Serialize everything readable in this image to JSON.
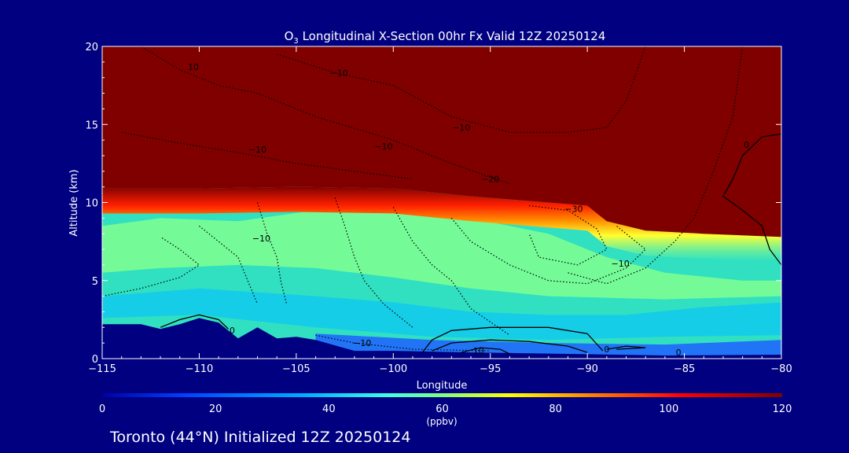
{
  "chart_data": {
    "type": "heatmap",
    "title_prefix": "O",
    "title_sub": "3",
    "title_rest": " Longitudinal X-Section 00hr  Fx Valid 12Z 20250124",
    "xlabel": "Longitude",
    "ylabel": "Altitude (km)",
    "xlim": [
      -115,
      -80
    ],
    "ylim": [
      0,
      20
    ],
    "x_ticks": [
      -115,
      -110,
      -105,
      -100,
      -95,
      -90,
      -85,
      -80
    ],
    "x_tick_labels": [
      "−115",
      "−110",
      "−105",
      "−100",
      "−95",
      "−90",
      "−85",
      "−80"
    ],
    "y_ticks": [
      0,
      5,
      10,
      15,
      20
    ],
    "y_tick_labels": [
      "0",
      "5",
      "10",
      "15",
      "20"
    ],
    "colorbar": {
      "min": 0,
      "max": 120,
      "ticks": [
        0,
        20,
        40,
        60,
        80,
        100,
        120
      ],
      "tick_labels": [
        "0",
        "20",
        "40",
        "60",
        "80",
        "100",
        "120"
      ],
      "unit": "(ppbv)"
    },
    "surface_km": [
      [
        -115,
        2.2
      ],
      [
        -113,
        2.2
      ],
      [
        -112,
        1.9
      ],
      [
        -111,
        2.2
      ],
      [
        -110,
        2.6
      ],
      [
        -109,
        2.3
      ],
      [
        -108,
        1.3
      ],
      [
        -107,
        2.0
      ],
      [
        -106,
        1.3
      ],
      [
        -105,
        1.4
      ],
      [
        -104,
        1.2
      ],
      [
        -102,
        0.5
      ],
      [
        -100,
        0.5
      ],
      [
        -96,
        0.4
      ],
      [
        -91,
        0.3
      ],
      [
        -86,
        0.2
      ],
      [
        -80,
        0.25
      ]
    ],
    "tropopause_km": [
      [
        -115,
        10.9
      ],
      [
        -110,
        10.9
      ],
      [
        -105,
        11.0
      ],
      [
        -100,
        10.9
      ],
      [
        -96,
        10.4
      ],
      [
        -92,
        10.0
      ],
      [
        -90,
        9.8
      ],
      [
        -89,
        8.8
      ],
      [
        -87,
        8.2
      ],
      [
        -84,
        8.0
      ],
      [
        -80,
        7.8
      ]
    ],
    "contour_labels": [
      {
        "text": "10",
        "lon": -110.3,
        "alt": 18.5
      },
      {
        "text": "−10",
        "lon": -102.8,
        "alt": 18.1
      },
      {
        "text": "−10",
        "lon": -96.5,
        "alt": 14.6
      },
      {
        "text": "−10",
        "lon": -100.5,
        "alt": 13.4
      },
      {
        "text": "−10",
        "lon": -107.0,
        "alt": 13.2
      },
      {
        "text": "−20",
        "lon": -95.0,
        "alt": 11.3
      },
      {
        "text": "−30",
        "lon": -90.7,
        "alt": 9.4
      },
      {
        "text": "−10",
        "lon": -106.8,
        "alt": 7.5
      },
      {
        "text": "−10",
        "lon": -88.3,
        "alt": 5.9
      },
      {
        "text": "0",
        "lon": -108.3,
        "alt": 1.6
      },
      {
        "text": "−10",
        "lon": -101.6,
        "alt": 0.8
      },
      {
        "text": "10",
        "lon": -95.6,
        "alt": 0.3
      },
      {
        "text": "0",
        "lon": -89.0,
        "alt": 0.4
      },
      {
        "text": "0",
        "lon": -85.3,
        "alt": 0.2
      },
      {
        "text": "0",
        "lon": -81.8,
        "alt": 13.5
      }
    ],
    "grid": false
  },
  "caption": "Toronto (44°N) Initialized 12Z 20250124",
  "colors": {
    "background": "#000080",
    "stratosphere": "#800000",
    "text": "#ffffff"
  }
}
